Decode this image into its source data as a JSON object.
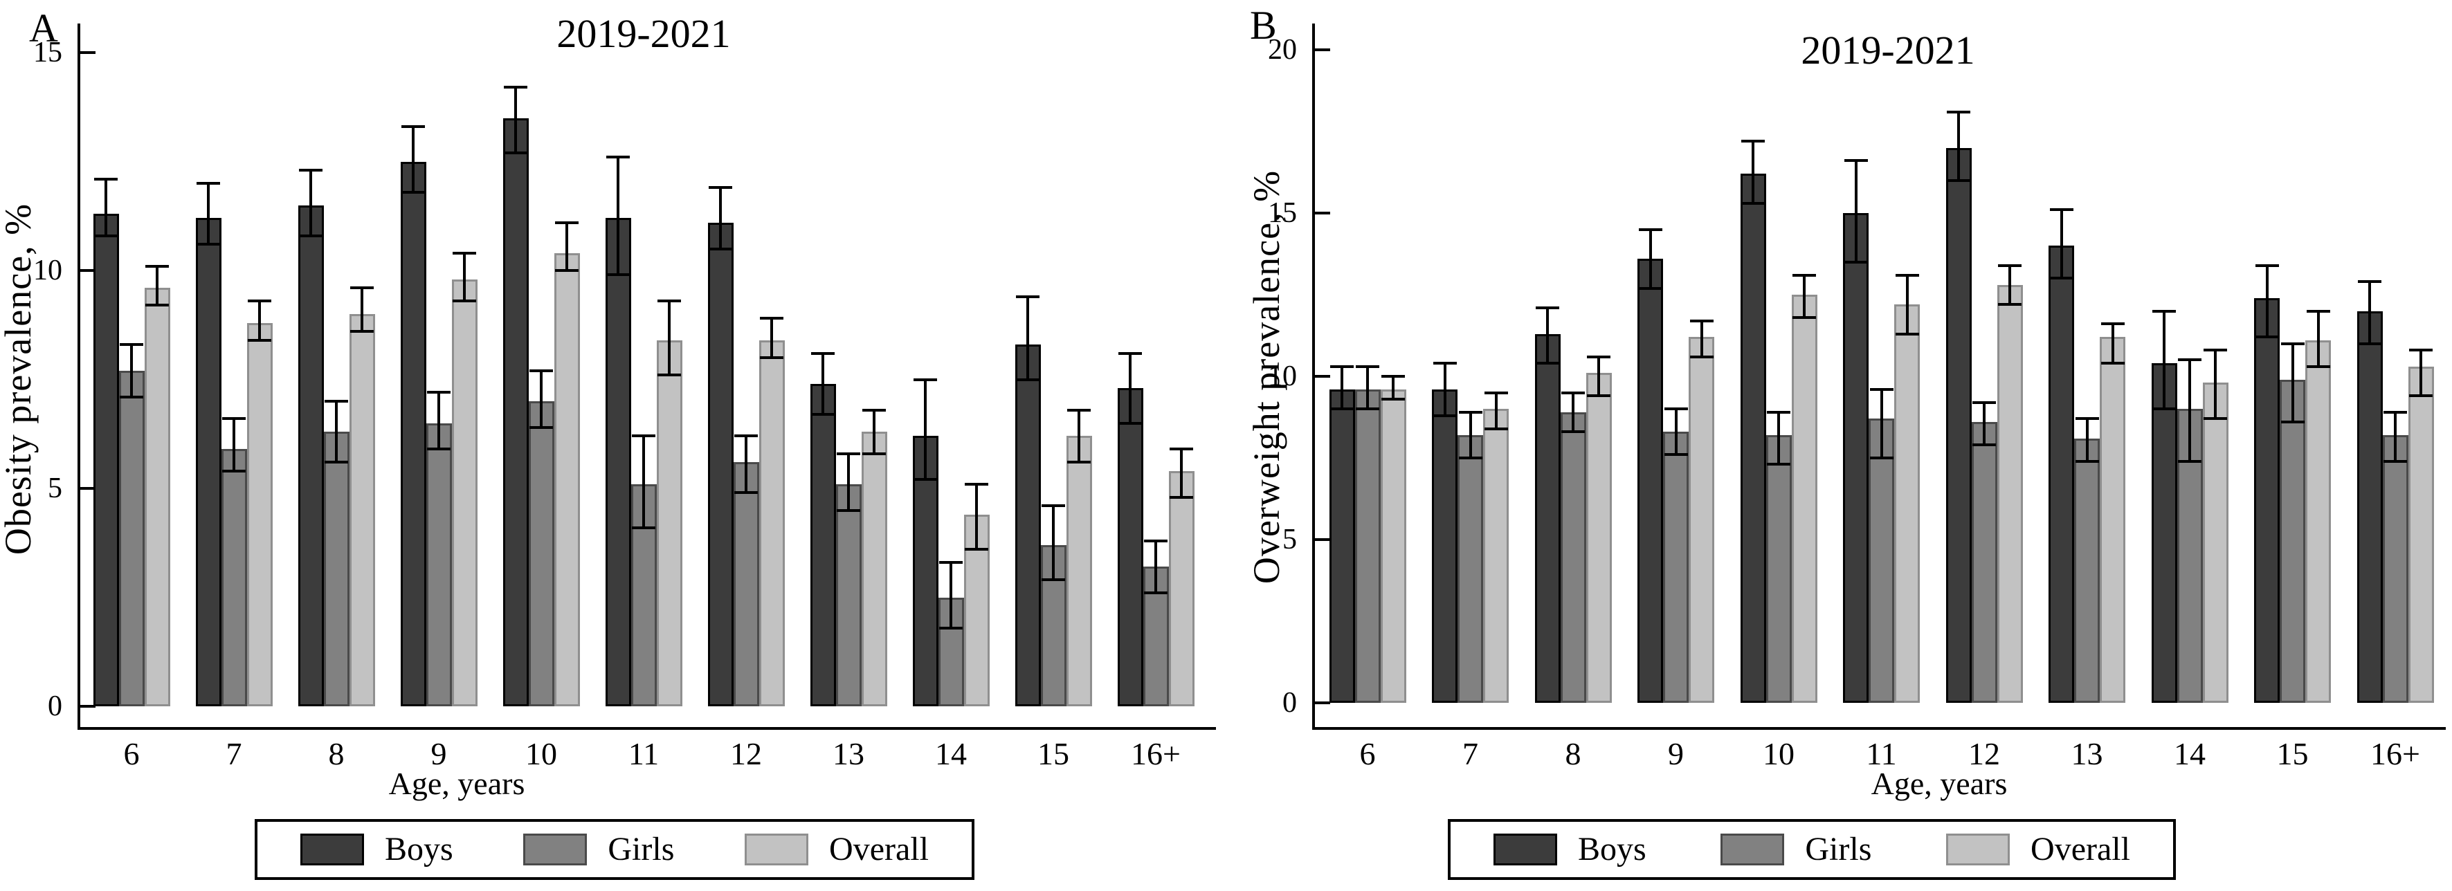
{
  "figure": {
    "description": "Two-panel grouped bar chart with error bars, years 2019-2021",
    "background_color": "#ffffff",
    "text_color": "#000000"
  },
  "chart_data": [
    {
      "type": "bar",
      "panel_label": "A",
      "title": "2019-2021",
      "xlabel": "Age, years",
      "ylabel": "Obesity prevalence, %",
      "ylim": [
        0,
        15
      ],
      "yticks": [
        0,
        5,
        10,
        15
      ],
      "grid": false,
      "legend_position": "bottom",
      "error_bars": true,
      "categories": [
        "6",
        "7",
        "8",
        "9",
        "10",
        "11",
        "12",
        "13",
        "14",
        "15",
        "16+"
      ],
      "series": [
        {
          "name": "Boys",
          "color": "#3c3c3c",
          "border": "#000000",
          "values": [
            11.3,
            11.2,
            11.5,
            12.5,
            13.5,
            11.2,
            11.1,
            7.4,
            6.2,
            8.3,
            7.3
          ],
          "ci_low": [
            10.8,
            10.6,
            10.8,
            11.8,
            12.7,
            9.9,
            10.5,
            6.7,
            5.2,
            7.5,
            6.5
          ],
          "ci_high": [
            12.1,
            12.0,
            12.3,
            13.3,
            14.2,
            12.6,
            11.9,
            8.1,
            7.5,
            9.4,
            8.1
          ]
        },
        {
          "name": "Girls",
          "color": "#818181",
          "border": "#4a4a4a",
          "values": [
            7.7,
            5.9,
            6.3,
            6.5,
            7.0,
            5.1,
            5.6,
            5.1,
            2.5,
            3.7,
            3.2
          ],
          "ci_low": [
            7.1,
            5.4,
            5.6,
            5.9,
            6.4,
            4.1,
            4.9,
            4.5,
            1.8,
            2.9,
            2.6
          ],
          "ci_high": [
            8.3,
            6.6,
            7.0,
            7.2,
            7.7,
            6.2,
            6.2,
            5.8,
            3.3,
            4.6,
            3.8
          ]
        },
        {
          "name": "Overall",
          "color": "#c2c2c2",
          "border": "#8f8f8f",
          "values": [
            9.6,
            8.8,
            9.0,
            9.8,
            10.4,
            8.4,
            8.4,
            6.3,
            4.4,
            6.2,
            5.4
          ],
          "ci_low": [
            9.2,
            8.4,
            8.6,
            9.3,
            10.0,
            7.6,
            8.0,
            5.8,
            3.6,
            5.6,
            4.8
          ],
          "ci_high": [
            10.1,
            9.3,
            9.6,
            10.4,
            11.1,
            9.3,
            8.9,
            6.8,
            5.1,
            6.8,
            5.9
          ]
        }
      ]
    },
    {
      "type": "bar",
      "panel_label": "B",
      "title": "2019-2021",
      "xlabel": "Age, years",
      "ylabel": "Overweight prevalence, %",
      "ylim": [
        0,
        20
      ],
      "yticks": [
        0,
        5,
        10,
        15,
        20
      ],
      "grid": false,
      "legend_position": "bottom",
      "error_bars": true,
      "categories": [
        "6",
        "7",
        "8",
        "9",
        "10",
        "11",
        "12",
        "13",
        "14",
        "15",
        "16+"
      ],
      "series": [
        {
          "name": "Boys",
          "color": "#3c3c3c",
          "border": "#000000",
          "values": [
            9.6,
            9.6,
            11.3,
            13.6,
            16.2,
            15.0,
            17.0,
            14.0,
            10.4,
            12.4,
            12.0
          ],
          "ci_low": [
            9.0,
            8.8,
            10.4,
            12.7,
            15.3,
            13.5,
            16.0,
            13.0,
            9.0,
            11.2,
            11.0
          ],
          "ci_high": [
            10.3,
            10.4,
            12.1,
            14.5,
            17.2,
            16.6,
            18.1,
            15.1,
            12.0,
            13.4,
            12.9
          ]
        },
        {
          "name": "Girls",
          "color": "#818181",
          "border": "#4a4a4a",
          "values": [
            9.6,
            8.2,
            8.9,
            8.3,
            8.2,
            8.7,
            8.6,
            8.1,
            9.0,
            9.9,
            8.2
          ],
          "ci_low": [
            9.0,
            7.5,
            8.3,
            7.6,
            7.3,
            7.5,
            7.9,
            7.4,
            7.4,
            8.6,
            7.4
          ],
          "ci_high": [
            10.3,
            8.9,
            9.5,
            9.0,
            8.9,
            9.6,
            9.2,
            8.7,
            10.5,
            11.0,
            8.9
          ]
        },
        {
          "name": "Overall",
          "color": "#c2c2c2",
          "border": "#8f8f8f",
          "values": [
            9.6,
            9.0,
            10.1,
            11.2,
            12.5,
            12.2,
            12.8,
            11.2,
            9.8,
            11.1,
            10.3
          ],
          "ci_low": [
            9.3,
            8.4,
            9.4,
            10.6,
            11.8,
            11.3,
            12.2,
            10.4,
            8.7,
            10.3,
            9.4
          ],
          "ci_high": [
            10.0,
            9.5,
            10.6,
            11.7,
            13.1,
            13.1,
            13.4,
            11.6,
            10.8,
            12.0,
            10.8
          ]
        }
      ]
    }
  ]
}
